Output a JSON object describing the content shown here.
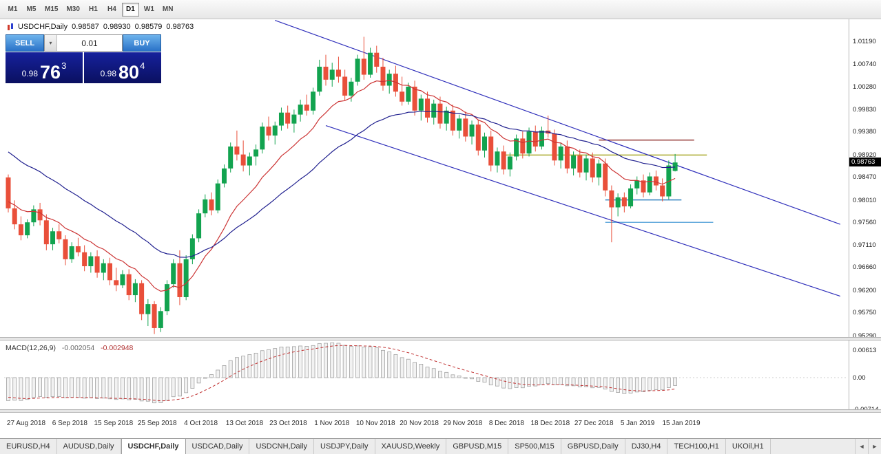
{
  "toolbar": {
    "timeframes": [
      "M1",
      "M5",
      "M15",
      "M30",
      "H1",
      "H4",
      "D1",
      "W1",
      "MN"
    ],
    "active": "D1"
  },
  "chart_header": {
    "symbol": "USDCHF,Daily",
    "open": "0.98587",
    "high": "0.98930",
    "low": "0.98579",
    "close": "0.98763"
  },
  "trade_panel": {
    "sell_label": "SELL",
    "buy_label": "BUY",
    "volume": "0.01",
    "sell_price_main": "0.98",
    "sell_price_pips": "76",
    "sell_price_point": "3",
    "buy_price_main": "0.98",
    "buy_price_pips": "80",
    "buy_price_point": "4"
  },
  "icons": {
    "dropdown": "▾"
  },
  "price_axis": [
    "1.01190",
    "1.00740",
    "1.00280",
    "0.99830",
    "0.99380",
    "0.98920",
    "0.98470",
    "0.98010",
    "0.97560",
    "0.97110",
    "0.96660",
    "0.96200",
    "0.95750",
    "0.95290"
  ],
  "macd": {
    "name": "MACD(12,26,9)",
    "value": "-0.002054",
    "signal": "-0.002948",
    "axis_labels": [
      "0.00613",
      "0.00",
      "-0.00714"
    ],
    "axis_values": [
      0.00613,
      0,
      -0.00714
    ]
  },
  "date_axis": [
    "27 Aug 2018",
    "6 Sep 2018",
    "15 Sep 2018",
    "25 Sep 2018",
    "4 Oct 2018",
    "13 Oct 2018",
    "23 Oct 2018",
    "1 Nov 2018",
    "10 Nov 2018",
    "20 Nov 2018",
    "29 Nov 2018",
    "8 Dec 2018",
    "18 Dec 2018",
    "27 Dec 2018",
    "5 Jan 2019",
    "15 Jan 2019"
  ],
  "tabs": {
    "items": [
      "EURUSD,H4",
      "AUDUSD,Daily",
      "USDCHF,Daily",
      "USDCAD,Daily",
      "USDCNH,Daily",
      "USDJPY,Daily",
      "XAUUSD,Weekly",
      "GBPUSD,M15",
      "SP500,M15",
      "GBPUSD,Daily",
      "DJ30,H4",
      "TECH100,H1",
      "UKOil,H1"
    ],
    "active": "USDCHF,Daily",
    "scroll_left": "◄",
    "scroll_right": "►"
  },
  "chart_data": {
    "type": "candlestick",
    "title": "USDCHF,Daily",
    "ylim": [
      0.9529,
      1.0119
    ],
    "colors": {
      "bull": "#12a34f",
      "bear": "#e94f3a"
    },
    "candles": [
      [
        0.9846,
        0.9852,
        0.9776,
        0.9784
      ],
      [
        0.9784,
        0.98,
        0.9742,
        0.9752
      ],
      [
        0.9752,
        0.9768,
        0.972,
        0.973
      ],
      [
        0.973,
        0.9762,
        0.9724,
        0.9756
      ],
      [
        0.9756,
        0.979,
        0.9748,
        0.9782
      ],
      [
        0.9782,
        0.9795,
        0.975,
        0.976
      ],
      [
        0.976,
        0.9772,
        0.97,
        0.9712
      ],
      [
        0.9712,
        0.9745,
        0.97,
        0.9738
      ],
      [
        0.9738,
        0.9752,
        0.9714,
        0.9722
      ],
      [
        0.9722,
        0.973,
        0.967,
        0.9682
      ],
      [
        0.9682,
        0.9716,
        0.9675,
        0.9708
      ],
      [
        0.9708,
        0.9725,
        0.9688,
        0.9696
      ],
      [
        0.9696,
        0.971,
        0.9658,
        0.9668
      ],
      [
        0.9668,
        0.9696,
        0.9655,
        0.9688
      ],
      [
        0.9688,
        0.97,
        0.9645,
        0.9655
      ],
      [
        0.9655,
        0.9682,
        0.964,
        0.9674
      ],
      [
        0.9674,
        0.9685,
        0.963,
        0.964
      ],
      [
        0.964,
        0.9665,
        0.9618,
        0.963
      ],
      [
        0.963,
        0.966,
        0.9624,
        0.9652
      ],
      [
        0.9652,
        0.9662,
        0.96,
        0.961
      ],
      [
        0.961,
        0.9642,
        0.9596,
        0.9634
      ],
      [
        0.9634,
        0.964,
        0.956,
        0.9572
      ],
      [
        0.9572,
        0.9602,
        0.9548,
        0.9592
      ],
      [
        0.9592,
        0.9598,
        0.9532,
        0.9544
      ],
      [
        0.9544,
        0.9586,
        0.9536,
        0.9578
      ],
      [
        0.9578,
        0.964,
        0.957,
        0.9632
      ],
      [
        0.9632,
        0.9682,
        0.9625,
        0.9674
      ],
      [
        0.9674,
        0.97,
        0.959,
        0.9606
      ],
      [
        0.9606,
        0.969,
        0.96,
        0.9682
      ],
      [
        0.9682,
        0.9732,
        0.9672,
        0.9724
      ],
      [
        0.9724,
        0.9782,
        0.9716,
        0.9774
      ],
      [
        0.9774,
        0.9812,
        0.9766,
        0.9802
      ],
      [
        0.9802,
        0.9816,
        0.977,
        0.978
      ],
      [
        0.978,
        0.9842,
        0.9774,
        0.9834
      ],
      [
        0.9834,
        0.9872,
        0.9826,
        0.9864
      ],
      [
        0.9864,
        0.9916,
        0.9856,
        0.9908
      ],
      [
        0.9908,
        0.994,
        0.988,
        0.9892
      ],
      [
        0.9892,
        0.992,
        0.9858,
        0.987
      ],
      [
        0.987,
        0.9896,
        0.985,
        0.9888
      ],
      [
        0.9888,
        0.9912,
        0.987,
        0.9902
      ],
      [
        0.9902,
        0.9956,
        0.9894,
        0.9948
      ],
      [
        0.9948,
        0.9968,
        0.992,
        0.993
      ],
      [
        0.993,
        0.9958,
        0.9912,
        0.995
      ],
      [
        0.995,
        0.9986,
        0.994,
        0.9976
      ],
      [
        0.9976,
        0.999,
        0.9944,
        0.9954
      ],
      [
        0.9954,
        0.9982,
        0.9936,
        0.9972
      ],
      [
        0.9972,
        1.0002,
        0.9958,
        0.9992
      ],
      [
        0.9992,
        1.0012,
        0.997,
        0.998
      ],
      [
        0.998,
        1.0026,
        0.9972,
        1.0018
      ],
      [
        1.0018,
        1.0082,
        1.001,
        1.0068
      ],
      [
        1.0068,
        1.0092,
        1.003,
        1.0042
      ],
      [
        1.0042,
        1.0076,
        1.0028,
        1.0062
      ],
      [
        1.0062,
        1.0088,
        1.0036,
        1.0048
      ],
      [
        1.0048,
        1.0062,
        1.0,
        1.001
      ],
      [
        1.001,
        1.0046,
        0.9998,
        1.0038
      ],
      [
        1.0038,
        1.0092,
        1.003,
        1.0084
      ],
      [
        1.0084,
        1.0128,
        1.0042,
        1.0052
      ],
      [
        1.0052,
        1.0106,
        1.0046,
        1.0096
      ],
      [
        1.0096,
        1.011,
        1.0056,
        1.0068
      ],
      [
        1.0068,
        1.0086,
        1.002,
        1.003
      ],
      [
        1.003,
        1.0062,
        1.0014,
        1.0054
      ],
      [
        1.0054,
        1.007,
        1.0008,
        1.0018
      ],
      [
        1.0018,
        1.0048,
        0.999,
        0.9998
      ],
      [
        0.9998,
        1.0036,
        0.9992,
        1.0028
      ],
      [
        1.0028,
        1.004,
        0.997,
        0.998
      ],
      [
        0.998,
        1.0012,
        0.996,
        1.0004
      ],
      [
        1.0004,
        1.0018,
        0.9956,
        0.9966
      ],
      [
        0.9966,
        1.0002,
        0.9952,
        0.9994
      ],
      [
        0.9994,
        1.0008,
        0.9944,
        0.9954
      ],
      [
        0.9954,
        0.9988,
        0.994,
        0.998
      ],
      [
        0.998,
        0.9992,
        0.993,
        0.994
      ],
      [
        0.994,
        0.9972,
        0.9924,
        0.9964
      ],
      [
        0.9964,
        0.9978,
        0.9918,
        0.9928
      ],
      [
        0.9928,
        0.996,
        0.9912,
        0.9952
      ],
      [
        0.9952,
        0.9962,
        0.989,
        0.99
      ],
      [
        0.99,
        0.9936,
        0.9886,
        0.9928
      ],
      [
        0.9928,
        0.994,
        0.9858,
        0.987
      ],
      [
        0.987,
        0.9906,
        0.9856,
        0.9898
      ],
      [
        0.9898,
        0.991,
        0.9852,
        0.9862
      ],
      [
        0.9862,
        0.9896,
        0.9848,
        0.9888
      ],
      [
        0.9888,
        0.9932,
        0.988,
        0.9924
      ],
      [
        0.9924,
        0.9938,
        0.9884,
        0.9894
      ],
      [
        0.9894,
        0.9946,
        0.9888,
        0.9938
      ],
      [
        0.9938,
        0.995,
        0.9898,
        0.9908
      ],
      [
        0.9908,
        0.9948,
        0.9902,
        0.994
      ],
      [
        0.994,
        0.997,
        0.9926,
        0.9934
      ],
      [
        0.9934,
        0.9942,
        0.987,
        0.988
      ],
      [
        0.988,
        0.9916,
        0.9864,
        0.9908
      ],
      [
        0.9908,
        0.992,
        0.9854,
        0.9864
      ],
      [
        0.9864,
        0.9898,
        0.985,
        0.989
      ],
      [
        0.989,
        0.9902,
        0.9846,
        0.9856
      ],
      [
        0.9856,
        0.9892,
        0.984,
        0.9884
      ],
      [
        0.9884,
        0.9896,
        0.9836,
        0.9846
      ],
      [
        0.9846,
        0.9882,
        0.983,
        0.9874
      ],
      [
        0.9874,
        0.9884,
        0.9808,
        0.982
      ],
      [
        0.982,
        0.983,
        0.9716,
        0.9786
      ],
      [
        0.9786,
        0.9814,
        0.9768,
        0.9806
      ],
      [
        0.9806,
        0.9816,
        0.9776,
        0.9788
      ],
      [
        0.9788,
        0.9832,
        0.9784,
        0.9824
      ],
      [
        0.9824,
        0.9848,
        0.9812,
        0.984
      ],
      [
        0.984,
        0.9852,
        0.9806,
        0.9816
      ],
      [
        0.9816,
        0.9856,
        0.981,
        0.9848
      ],
      [
        0.9848,
        0.986,
        0.982,
        0.983
      ],
      [
        0.983,
        0.9844,
        0.9798,
        0.9808
      ],
      [
        0.9808,
        0.988,
        0.9802,
        0.987
      ],
      [
        0.9859,
        0.9893,
        0.9858,
        0.9876
      ]
    ],
    "overlays": {
      "ma_fast": {
        "period": 12,
        "seed": 0.98,
        "color": "#cc3434"
      },
      "ma_slow": {
        "period": 30,
        "seed": 0.9905,
        "color": "#20208f"
      },
      "trendlines": [
        {
          "from_bar": 42,
          "from_price": 1.0161,
          "to_bar": 131,
          "to_price": 0.9752,
          "color": "#3030bb"
        },
        {
          "from_bar": 50,
          "from_price": 0.995,
          "to_bar": 131,
          "to_price": 0.9608,
          "color": "#3030bb"
        }
      ],
      "hlines": [
        {
          "price": 0.9921,
          "from_bar": 93,
          "to_bar": 108,
          "color": "#943634"
        },
        {
          "price": 0.9891,
          "from_bar": 78,
          "to_bar": 110,
          "color": "#aaaa2e"
        },
        {
          "price": 0.9801,
          "from_bar": 94,
          "to_bar": 106,
          "color": "#2f80bf"
        },
        {
          "price": 0.9756,
          "from_bar": 94,
          "to_bar": 111,
          "color": "#64aadc"
        }
      ]
    },
    "indicator": {
      "name": "MACD",
      "params": [
        12,
        26,
        9
      ],
      "value": -0.002054,
      "signal_value": -0.002948,
      "seed_fast": 0.979,
      "seed_slow": 0.9845,
      "seed_signal": -0.0042,
      "histogram_fill": "#f2f2f2",
      "histogram_stroke": "#a0a0a0",
      "signal_color": "#c03030",
      "range": [
        -0.00714,
        0.00613
      ]
    }
  }
}
